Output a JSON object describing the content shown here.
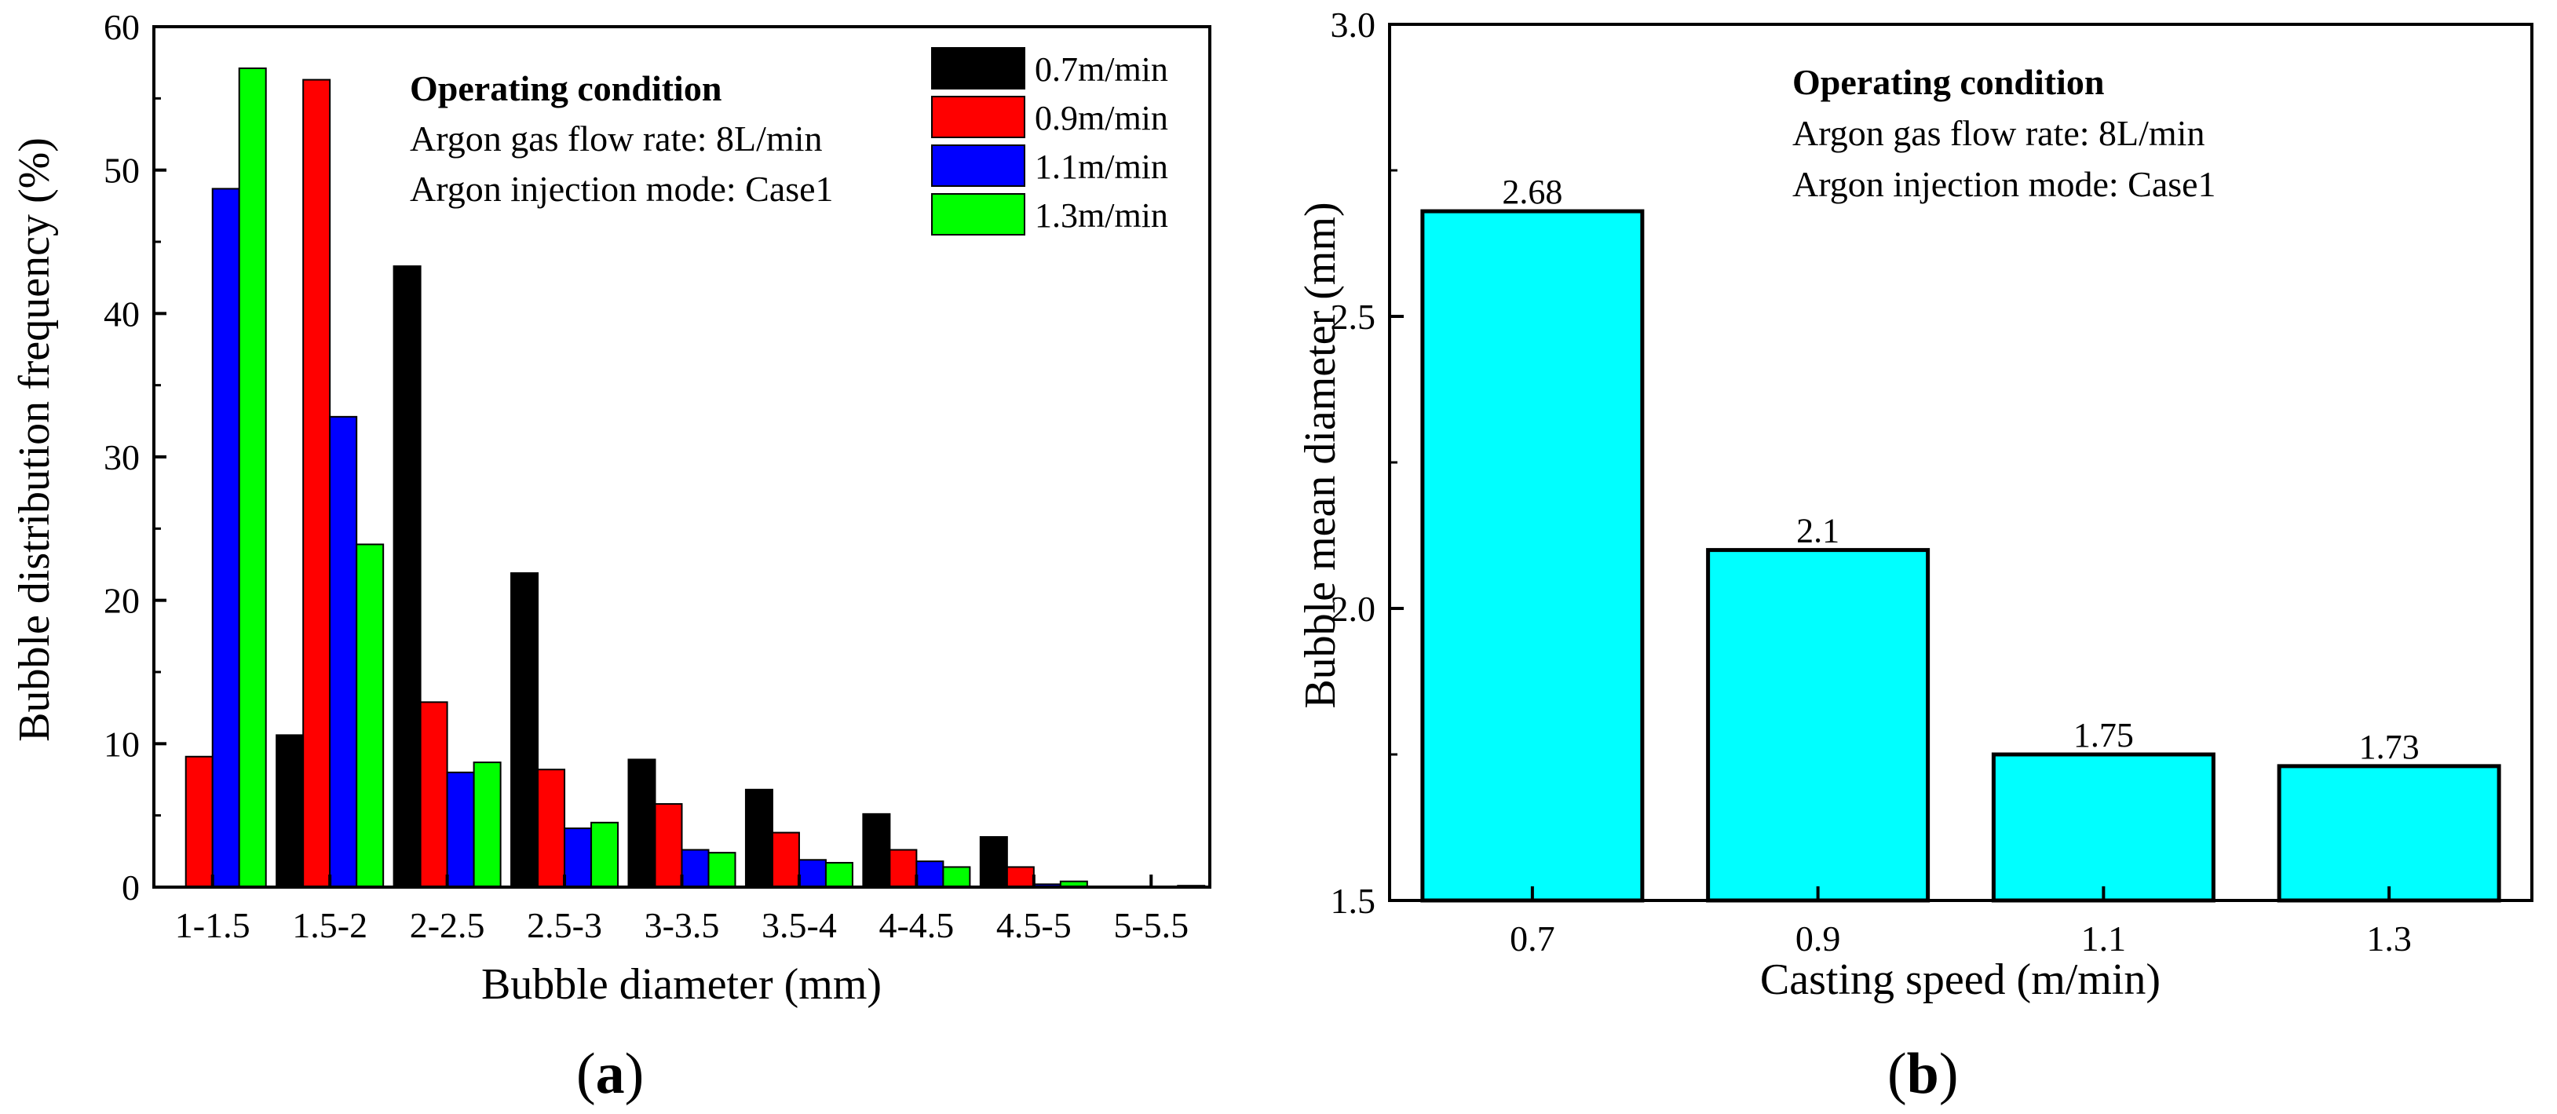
{
  "chart_data": [
    {
      "type": "bar",
      "panel_label": "a",
      "title": "",
      "xlabel": "Bubble diameter (mm)",
      "ylabel": "Bubble distribution frequency (%)",
      "ylim": [
        0,
        60
      ],
      "yticks": [
        "0",
        "10",
        "20",
        "30",
        "40",
        "50",
        "60"
      ],
      "categories": [
        "1-1.5",
        "1.5-2",
        "2-2.5",
        "2.5-3",
        "3-3.5",
        "3.5-4",
        "4-4.5",
        "4.5-5",
        "5-5.5"
      ],
      "legend_position": "top-right",
      "series": [
        {
          "name": "0.7m/min",
          "color": "#000000",
          "values": [
            0,
            10.6,
            43.3,
            21.9,
            8.9,
            6.8,
            5.1,
            3.5,
            0
          ]
        },
        {
          "name": "0.9m/min",
          "color": "#ff0000",
          "values": [
            9.1,
            56.3,
            12.9,
            8.2,
            5.8,
            3.8,
            2.6,
            1.4,
            0
          ]
        },
        {
          "name": "1.1m/min",
          "color": "#0000ff",
          "values": [
            48.7,
            32.8,
            8.0,
            4.1,
            2.6,
            1.9,
            1.8,
            0.2,
            0
          ]
        },
        {
          "name": "1.3m/min",
          "color": "#00ff00",
          "values": [
            57.1,
            23.9,
            8.7,
            4.5,
            2.4,
            1.7,
            1.4,
            0.4,
            0.1
          ]
        }
      ],
      "annotation": {
        "heading": "Operating condition",
        "lines": [
          "Argon gas flow rate: 8L/min",
          "Argon injection mode: Case1"
        ]
      }
    },
    {
      "type": "bar",
      "panel_label": "b",
      "title": "",
      "xlabel": "Casting speed (m/min)",
      "ylabel": "Bubble mean diameter (mm)",
      "ylim": [
        1.5,
        3.0
      ],
      "yticks": [
        "1.5",
        "2.0",
        "2.5",
        "3.0"
      ],
      "categories": [
        "0.7",
        "0.9",
        "1.1",
        "1.3"
      ],
      "values": [
        2.68,
        2.1,
        1.75,
        1.73
      ],
      "value_labels": [
        "2.68",
        "2.1",
        "1.75",
        "1.73"
      ],
      "bar_color": "#00ffff",
      "annotation": {
        "heading": "Operating condition",
        "lines": [
          "Argon gas flow rate: 8L/min",
          "Argon injection mode: Case1"
        ]
      }
    }
  ]
}
